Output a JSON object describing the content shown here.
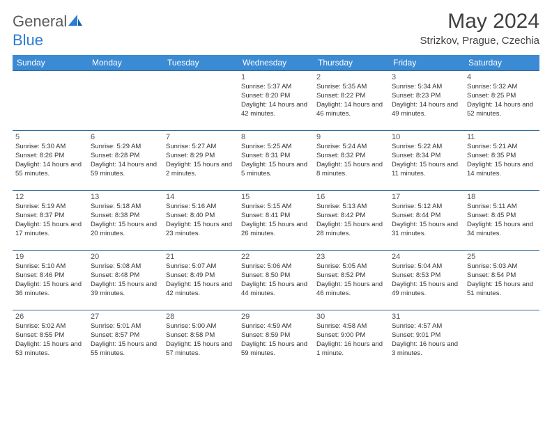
{
  "brand": {
    "part1": "General",
    "part2": "Blue"
  },
  "title": "May 2024",
  "location": "Strizkov, Prague, Czechia",
  "colors": {
    "header_bg": "#3b8bd4",
    "header_text": "#ffffff",
    "border": "#346a9c",
    "daynum": "#555555",
    "body_text": "#333333",
    "brand_gray": "#5a5a5a",
    "brand_blue": "#2b7cd3"
  },
  "day_headers": [
    "Sunday",
    "Monday",
    "Tuesday",
    "Wednesday",
    "Thursday",
    "Friday",
    "Saturday"
  ],
  "weeks": [
    [
      null,
      null,
      null,
      {
        "d": "1",
        "sr": "5:37 AM",
        "ss": "8:20 PM",
        "dl": "14 hours and 42 minutes."
      },
      {
        "d": "2",
        "sr": "5:35 AM",
        "ss": "8:22 PM",
        "dl": "14 hours and 46 minutes."
      },
      {
        "d": "3",
        "sr": "5:34 AM",
        "ss": "8:23 PM",
        "dl": "14 hours and 49 minutes."
      },
      {
        "d": "4",
        "sr": "5:32 AM",
        "ss": "8:25 PM",
        "dl": "14 hours and 52 minutes."
      }
    ],
    [
      {
        "d": "5",
        "sr": "5:30 AM",
        "ss": "8:26 PM",
        "dl": "14 hours and 55 minutes."
      },
      {
        "d": "6",
        "sr": "5:29 AM",
        "ss": "8:28 PM",
        "dl": "14 hours and 59 minutes."
      },
      {
        "d": "7",
        "sr": "5:27 AM",
        "ss": "8:29 PM",
        "dl": "15 hours and 2 minutes."
      },
      {
        "d": "8",
        "sr": "5:25 AM",
        "ss": "8:31 PM",
        "dl": "15 hours and 5 minutes."
      },
      {
        "d": "9",
        "sr": "5:24 AM",
        "ss": "8:32 PM",
        "dl": "15 hours and 8 minutes."
      },
      {
        "d": "10",
        "sr": "5:22 AM",
        "ss": "8:34 PM",
        "dl": "15 hours and 11 minutes."
      },
      {
        "d": "11",
        "sr": "5:21 AM",
        "ss": "8:35 PM",
        "dl": "15 hours and 14 minutes."
      }
    ],
    [
      {
        "d": "12",
        "sr": "5:19 AM",
        "ss": "8:37 PM",
        "dl": "15 hours and 17 minutes."
      },
      {
        "d": "13",
        "sr": "5:18 AM",
        "ss": "8:38 PM",
        "dl": "15 hours and 20 minutes."
      },
      {
        "d": "14",
        "sr": "5:16 AM",
        "ss": "8:40 PM",
        "dl": "15 hours and 23 minutes."
      },
      {
        "d": "15",
        "sr": "5:15 AM",
        "ss": "8:41 PM",
        "dl": "15 hours and 26 minutes."
      },
      {
        "d": "16",
        "sr": "5:13 AM",
        "ss": "8:42 PM",
        "dl": "15 hours and 28 minutes."
      },
      {
        "d": "17",
        "sr": "5:12 AM",
        "ss": "8:44 PM",
        "dl": "15 hours and 31 minutes."
      },
      {
        "d": "18",
        "sr": "5:11 AM",
        "ss": "8:45 PM",
        "dl": "15 hours and 34 minutes."
      }
    ],
    [
      {
        "d": "19",
        "sr": "5:10 AM",
        "ss": "8:46 PM",
        "dl": "15 hours and 36 minutes."
      },
      {
        "d": "20",
        "sr": "5:08 AM",
        "ss": "8:48 PM",
        "dl": "15 hours and 39 minutes."
      },
      {
        "d": "21",
        "sr": "5:07 AM",
        "ss": "8:49 PM",
        "dl": "15 hours and 42 minutes."
      },
      {
        "d": "22",
        "sr": "5:06 AM",
        "ss": "8:50 PM",
        "dl": "15 hours and 44 minutes."
      },
      {
        "d": "23",
        "sr": "5:05 AM",
        "ss": "8:52 PM",
        "dl": "15 hours and 46 minutes."
      },
      {
        "d": "24",
        "sr": "5:04 AM",
        "ss": "8:53 PM",
        "dl": "15 hours and 49 minutes."
      },
      {
        "d": "25",
        "sr": "5:03 AM",
        "ss": "8:54 PM",
        "dl": "15 hours and 51 minutes."
      }
    ],
    [
      {
        "d": "26",
        "sr": "5:02 AM",
        "ss": "8:55 PM",
        "dl": "15 hours and 53 minutes."
      },
      {
        "d": "27",
        "sr": "5:01 AM",
        "ss": "8:57 PM",
        "dl": "15 hours and 55 minutes."
      },
      {
        "d": "28",
        "sr": "5:00 AM",
        "ss": "8:58 PM",
        "dl": "15 hours and 57 minutes."
      },
      {
        "d": "29",
        "sr": "4:59 AM",
        "ss": "8:59 PM",
        "dl": "15 hours and 59 minutes."
      },
      {
        "d": "30",
        "sr": "4:58 AM",
        "ss": "9:00 PM",
        "dl": "16 hours and 1 minute."
      },
      {
        "d": "31",
        "sr": "4:57 AM",
        "ss": "9:01 PM",
        "dl": "16 hours and 3 minutes."
      },
      null
    ]
  ],
  "labels": {
    "sunrise": "Sunrise: ",
    "sunset": "Sunset: ",
    "daylight": "Daylight: "
  }
}
